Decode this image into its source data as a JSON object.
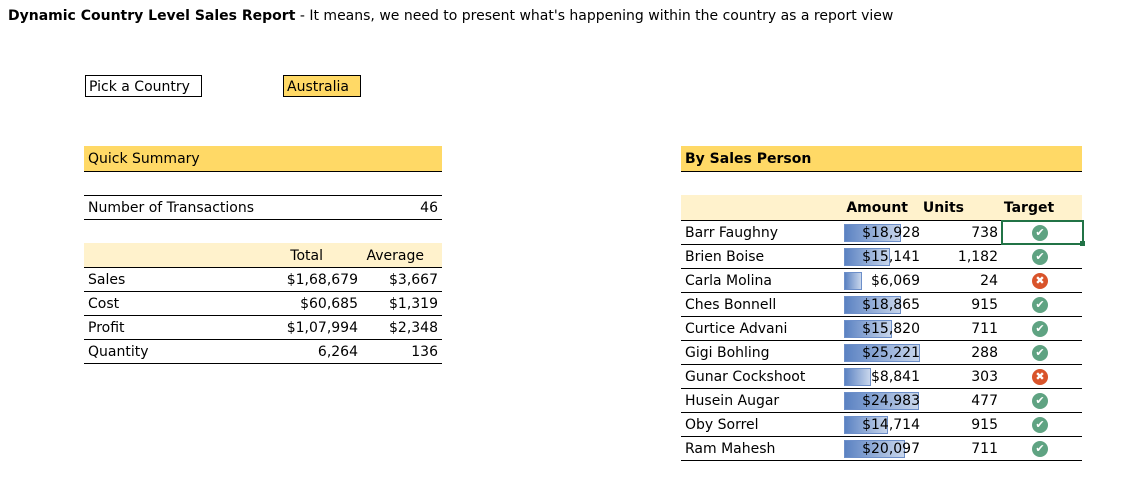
{
  "header": {
    "title": "Dynamic Country Level Sales Report",
    "subtitle": " - It means, we need to present what's happening within the country as a report view"
  },
  "picker": {
    "label": "Pick a Country",
    "value": "Australia"
  },
  "summary": {
    "title": "Quick Summary",
    "transactions_label": "Number of Transactions",
    "transactions_value": "46",
    "col_total": "Total",
    "col_average": "Average",
    "rows": [
      {
        "label": "Sales",
        "total": "$1,68,679",
        "average": "$3,667"
      },
      {
        "label": "Cost",
        "total": "$60,685",
        "average": "$1,319"
      },
      {
        "label": "Profit",
        "total": "$1,07,994",
        "average": "$2,348"
      },
      {
        "label": "Quantity",
        "total": "6,264",
        "average": "136"
      }
    ]
  },
  "sales_person": {
    "title": "By Sales Person",
    "col_amount": "Amount",
    "col_units": "Units",
    "col_target": "Target",
    "max_amount": 25221,
    "rows": [
      {
        "name": "Barr Faughny",
        "amount": "$18,928",
        "amount_value": 18928,
        "units": "738",
        "target": "check-icon"
      },
      {
        "name": "Brien Boise",
        "amount": "$15,141",
        "amount_value": 15141,
        "units": "1,182",
        "target": "check-icon"
      },
      {
        "name": "Carla Molina",
        "amount": "$6,069",
        "amount_value": 6069,
        "units": "24",
        "target": "cross-icon"
      },
      {
        "name": "Ches Bonnell",
        "amount": "$18,865",
        "amount_value": 18865,
        "units": "915",
        "target": "check-icon"
      },
      {
        "name": "Curtice Advani",
        "amount": "$15,820",
        "amount_value": 15820,
        "units": "711",
        "target": "check-icon"
      },
      {
        "name": "Gigi Bohling",
        "amount": "$25,221",
        "amount_value": 25221,
        "units": "288",
        "target": "check-icon"
      },
      {
        "name": "Gunar Cockshoot",
        "amount": "$8,841",
        "amount_value": 8841,
        "units": "303",
        "target": "cross-icon"
      },
      {
        "name": "Husein Augar",
        "amount": "$24,983",
        "amount_value": 24983,
        "units": "477",
        "target": "check-icon"
      },
      {
        "name": "Oby Sorrel",
        "amount": "$14,714",
        "amount_value": 14714,
        "units": "915",
        "target": "check-icon"
      },
      {
        "name": "Ram Mahesh",
        "amount": "$20,097",
        "amount_value": 20097,
        "units": "711",
        "target": "check-icon"
      }
    ]
  },
  "colors": {
    "header_band": "#ffd966",
    "pale_band": "#fff2cc",
    "check": "#5fa382",
    "cross": "#d9542b",
    "selection": "#217346"
  }
}
